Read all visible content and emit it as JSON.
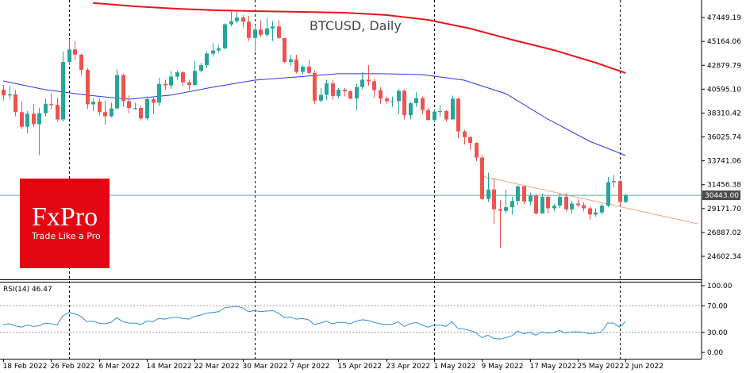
{
  "chart_data": [
    {
      "type": "candlestick",
      "title": "BTCUSD, Daily",
      "x": [
        "2022-02-18",
        "2022-02-19",
        "2022-02-20",
        "2022-02-21",
        "2022-02-22",
        "2022-02-23",
        "2022-02-24",
        "2022-02-25",
        "2022-02-26",
        "2022-02-27",
        "2022-02-28",
        "2022-03-01",
        "2022-03-02",
        "2022-03-03",
        "2022-03-04",
        "2022-03-05",
        "2022-03-06",
        "2022-03-07",
        "2022-03-08",
        "2022-03-09",
        "2022-03-10",
        "2022-03-11",
        "2022-03-12",
        "2022-03-13",
        "2022-03-14",
        "2022-03-15",
        "2022-03-16",
        "2022-03-17",
        "2022-03-18",
        "2022-03-19",
        "2022-03-20",
        "2022-03-21",
        "2022-03-22",
        "2022-03-23",
        "2022-03-24",
        "2022-03-25",
        "2022-03-26",
        "2022-03-27",
        "2022-03-28",
        "2022-03-29",
        "2022-03-30",
        "2022-03-31",
        "2022-04-01",
        "2022-04-02",
        "2022-04-03",
        "2022-04-04",
        "2022-04-05",
        "2022-04-06",
        "2022-04-07",
        "2022-04-08",
        "2022-04-09",
        "2022-04-10",
        "2022-04-11",
        "2022-04-12",
        "2022-04-13",
        "2022-04-14",
        "2022-04-15",
        "2022-04-16",
        "2022-04-17",
        "2022-04-18",
        "2022-04-19",
        "2022-04-20",
        "2022-04-21",
        "2022-04-22",
        "2022-04-23",
        "2022-04-24",
        "2022-04-25",
        "2022-04-26",
        "2022-04-27",
        "2022-04-28",
        "2022-04-29",
        "2022-04-30",
        "2022-05-01",
        "2022-05-02",
        "2022-05-03",
        "2022-05-04",
        "2022-05-05",
        "2022-05-06",
        "2022-05-07",
        "2022-05-08",
        "2022-05-09",
        "2022-05-10",
        "2022-05-11",
        "2022-05-12",
        "2022-05-13",
        "2022-05-14",
        "2022-05-15",
        "2022-05-16",
        "2022-05-17",
        "2022-05-18",
        "2022-05-19",
        "2022-05-20",
        "2022-05-21",
        "2022-05-22",
        "2022-05-23",
        "2022-05-24",
        "2022-05-25",
        "2022-05-26",
        "2022-05-27",
        "2022-05-28",
        "2022-05-29",
        "2022-05-30",
        "2022-05-31",
        "2022-06-01",
        "2022-06-02"
      ],
      "open": [
        40550,
        40000,
        40100,
        38400,
        37000,
        38250,
        37250,
        38300,
        39200,
        39100,
        37700,
        43200,
        44400,
        43900,
        42450,
        39150,
        39400,
        38400,
        38000,
        38750,
        41950,
        39450,
        38800,
        38800,
        37800,
        39650,
        39300,
        41100,
        40950,
        41800,
        42200,
        41250,
        41000,
        42350,
        42900,
        44000,
        44300,
        44500,
        46800,
        47100,
        47450,
        47050,
        45500,
        46300,
        45800,
        46400,
        46600,
        45500,
        43200,
        43450,
        42250,
        42750,
        42150,
        39500,
        40050,
        41150,
        39950,
        40550,
        40400,
        39700,
        40800,
        41500,
        41350,
        40500,
        39700,
        39450,
        39450,
        40450,
        38100,
        39250,
        39750,
        38600,
        37650,
        38450,
        38500,
        37700,
        39700,
        36550,
        36000,
        35450,
        34050,
        30100,
        31000,
        29100,
        28950,
        29300,
        29900,
        31300,
        29850,
        30400,
        28700,
        30300,
        29200,
        29450,
        30300,
        29100,
        29650,
        29500,
        29200,
        28600,
        28800,
        29450,
        31700,
        31800,
        29800
      ],
      "high": [
        41000,
        40900,
        40500,
        39400,
        38500,
        39200,
        38800,
        39700,
        40200,
        39800,
        44200,
        45400,
        45200,
        44000,
        42600,
        39700,
        39700,
        39500,
        39300,
        42500,
        42100,
        40000,
        39300,
        39000,
        39900,
        39900,
        41700,
        41500,
        42300,
        42400,
        42300,
        41500,
        43300,
        43100,
        44200,
        45000,
        44800,
        46900,
        48100,
        48100,
        47700,
        47600,
        46700,
        47200,
        47400,
        47100,
        47200,
        45500,
        43900,
        43900,
        42900,
        43400,
        42400,
        40700,
        41500,
        41500,
        40700,
        40700,
        40500,
        41100,
        42200,
        42900,
        41600,
        40800,
        39900,
        39900,
        40600,
        40600,
        39400,
        40300,
        39900,
        38800,
        38600,
        39100,
        38600,
        40000,
        39800,
        36700,
        36100,
        35500,
        34300,
        32600,
        32100,
        30000,
        31000,
        30300,
        31400,
        31400,
        30700,
        30600,
        30600,
        30400,
        29600,
        30600,
        30600,
        29900,
        30100,
        29800,
        29400,
        29200,
        29600,
        32200,
        32400,
        31900,
        30600
      ],
      "low": [
        39500,
        39600,
        38000,
        36800,
        36400,
        37000,
        34300,
        38000,
        38700,
        37500,
        37500,
        42900,
        43400,
        41900,
        38700,
        38500,
        38100,
        37200,
        37900,
        38700,
        38900,
        38300,
        38600,
        37600,
        37600,
        38200,
        39000,
        40500,
        40600,
        41500,
        40900,
        40500,
        40900,
        42200,
        42600,
        43700,
        44100,
        44400,
        46600,
        46900,
        46500,
        45200,
        44200,
        45600,
        45600,
        45200,
        45400,
        43100,
        42800,
        42100,
        42000,
        42000,
        39200,
        39300,
        39600,
        39600,
        39700,
        39900,
        39600,
        38600,
        40600,
        40900,
        39800,
        39200,
        39200,
        38900,
        38200,
        37700,
        37700,
        38900,
        38200,
        37600,
        37400,
        38000,
        37500,
        37700,
        35900,
        35300,
        34800,
        33700,
        30000,
        29800,
        27700,
        25400,
        28700,
        28600,
        29500,
        29600,
        29500,
        28600,
        28700,
        28700,
        28900,
        29200,
        28900,
        28700,
        29300,
        28900,
        28100,
        28400,
        28600,
        29300,
        31200,
        29500,
        29700
      ],
      "close": [
        40000,
        40100,
        38400,
        37000,
        38250,
        37250,
        38300,
        39200,
        39100,
        37700,
        43200,
        44400,
        43900,
        42450,
        39150,
        39400,
        38400,
        38000,
        38750,
        41950,
        39450,
        38800,
        38800,
        37800,
        39650,
        39300,
        41100,
        40950,
        41800,
        42200,
        41250,
        41000,
        42350,
        42900,
        44000,
        44300,
        44500,
        46800,
        47100,
        47450,
        47050,
        45500,
        46300,
        45800,
        46400,
        46600,
        45500,
        43200,
        43450,
        42250,
        42750,
        42150,
        39500,
        40050,
        41150,
        39950,
        40550,
        40400,
        39700,
        40800,
        41500,
        41350,
        40500,
        39700,
        39450,
        39450,
        40450,
        38100,
        39250,
        39750,
        38600,
        37650,
        38450,
        38500,
        37700,
        39700,
        36550,
        36000,
        35450,
        34050,
        30100,
        31000,
        29100,
        28950,
        29300,
        29900,
        31300,
        29850,
        30400,
        28700,
        30300,
        29200,
        29450,
        30300,
        29100,
        29650,
        29500,
        29200,
        28600,
        28800,
        29450,
        31700,
        31800,
        29800,
        30443
      ],
      "up_color": "#26a69a",
      "down_color": "#ef5350",
      "ylim": [
        22400,
        48900
      ],
      "yticks": [
        47449.19,
        45164.06,
        42879.79,
        {
          "value": 40595.1,
          "label": "40595.10"
        },
        38310.42,
        36025.74,
        33741.06,
        31456.38,
        {
          "value": 29171.7,
          "label": "29171.70"
        },
        26887.02,
        24602.34
      ],
      "xticks": [
        {
          "value": "2022-02-18",
          "label": "18 Feb 2022"
        },
        {
          "value": "2022-02-26",
          "label": "26 Feb 2022"
        },
        {
          "value": "2022-03-06",
          "label": "6 Mar 2022"
        },
        {
          "value": "2022-03-14",
          "label": "14 Mar 2022"
        },
        {
          "value": "2022-03-22",
          "label": "22 Mar 2022"
        },
        {
          "value": "2022-03-30",
          "label": "30 Mar 2022"
        },
        {
          "value": "2022-04-07",
          "label": "7 Apr 2022"
        },
        {
          "value": "2022-04-15",
          "label": "15 Apr 2022"
        },
        {
          "value": "2022-04-23",
          "label": "23 Apr 2022"
        },
        {
          "value": "2022-05-01",
          "label": "1 May 2022"
        },
        {
          "value": "2022-05-09",
          "label": "9 May 2022"
        },
        {
          "value": "2022-05-17",
          "label": "17 May 2022"
        },
        {
          "value": "2022-05-25",
          "label": "25 May 2022"
        },
        {
          "value": "2022-06-02",
          "label": "2 Jun 2022"
        }
      ],
      "overlays": [
        {
          "color": "#e8141c",
          "width": 2,
          "x": [
            "2022-03-05",
            "2022-03-12",
            "2022-03-19",
            "2022-03-26",
            "2022-04-02",
            "2022-04-09",
            "2022-04-16",
            "2022-04-23",
            "2022-04-30",
            "2022-05-07",
            "2022-05-14",
            "2022-05-21",
            "2022-05-28",
            "2022-06-02"
          ],
          "values": [
            48850,
            48520,
            48290,
            48140,
            48060,
            47990,
            47910,
            47690,
            47230,
            46400,
            45330,
            44340,
            43130,
            42140
          ]
        },
        {
          "color": "#2b35e8",
          "width": 1,
          "x": [
            "2022-02-18",
            "2022-02-25",
            "2022-03-04",
            "2022-03-11",
            "2022-03-18",
            "2022-03-25",
            "2022-04-01",
            "2022-04-08",
            "2022-04-15",
            "2022-04-22",
            "2022-04-29",
            "2022-05-06",
            "2022-05-13",
            "2022-05-20",
            "2022-05-27",
            "2022-06-02"
          ],
          "values": [
            41380,
            40550,
            40020,
            39640,
            40020,
            40780,
            41460,
            41760,
            42070,
            42070,
            41990,
            41460,
            40170,
            37740,
            35610,
            34250
          ]
        },
        {
          "color": "#f4a27f",
          "width": 1,
          "x": [
            "2022-05-09",
            "2022-06-14"
          ],
          "values": [
            32270,
            27720
          ]
        }
      ],
      "last_price": {
        "value": 30443,
        "label": "30443.00",
        "color": "#4fb3a4"
      }
    },
    {
      "type": "line",
      "label": "RSI(14) 46.47",
      "color": "#2f8fe0",
      "values": [
        42,
        43,
        40,
        38,
        41,
        39,
        40,
        44,
        43,
        41,
        55,
        60,
        58,
        54,
        46,
        47,
        44,
        43,
        45,
        52,
        46,
        44,
        44,
        42,
        47,
        46,
        51,
        50,
        52,
        53,
        51,
        50,
        54,
        56,
        59,
        60,
        61,
        67,
        68,
        69,
        67,
        61,
        63,
        61,
        62,
        63,
        59,
        52,
        53,
        50,
        51,
        49,
        42,
        44,
        47,
        43,
        45,
        45,
        43,
        47,
        49,
        48,
        45,
        43,
        42,
        42,
        46,
        39,
        43,
        45,
        41,
        38,
        41,
        41,
        39,
        46,
        36,
        35,
        33,
        30,
        22,
        26,
        21,
        20,
        22,
        25,
        32,
        28,
        30,
        26,
        31,
        29,
        30,
        33,
        29,
        31,
        31,
        30,
        28,
        29,
        31,
        44,
        44,
        38,
        46.47
      ],
      "ylim": [
        -7,
        106
      ],
      "yticks": [
        {
          "value": 100,
          "label": "100.00"
        },
        {
          "value": 70,
          "label": "70.00",
          "grid": true
        },
        {
          "value": 30,
          "label": "30.00",
          "grid": true
        },
        {
          "value": 0,
          "label": "0.00"
        }
      ]
    }
  ],
  "logo": {
    "name": "FxPro",
    "tagline": "Trade Like a Pro"
  }
}
